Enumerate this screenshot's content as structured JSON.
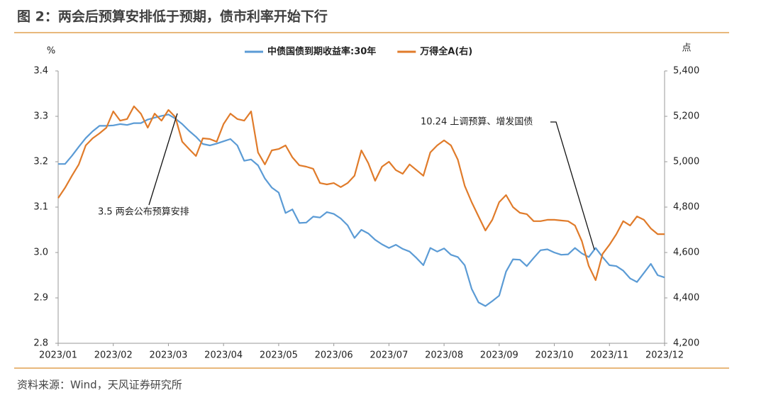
{
  "chart_data": {
    "type": "line",
    "title": "图 2：两会后预算安排低于预期，债市利率开始下行",
    "source": "资料来源：Wind，天风证券研究所",
    "y_label": "%",
    "y2_label": "点",
    "xticks": [
      "2023/01",
      "2023/02",
      "2023/03",
      "2023/04",
      "2023/05",
      "2023/06",
      "2023/07",
      "2023/08",
      "2023/09",
      "2023/10",
      "2023/11",
      "2023/12"
    ],
    "ylim": [
      2.8,
      3.4
    ],
    "yticks": [
      2.8,
      2.9,
      {
        "value": 3,
        "label": "3.0"
      },
      3.1,
      3.2,
      3.3,
      3.4
    ],
    "y2lim": [
      4200,
      5400
    ],
    "y2ticks": [
      {
        "value": 4200,
        "label": "4,200"
      },
      {
        "value": 4400,
        "label": "4,400"
      },
      {
        "value": 4600,
        "label": "4,600"
      },
      {
        "value": 4800,
        "label": "4,800"
      },
      {
        "value": 5000,
        "label": "5,000"
      },
      {
        "value": 5200,
        "label": "5,200"
      },
      {
        "value": 5400,
        "label": "5,400"
      }
    ],
    "legend": "top",
    "grid": false,
    "annotations": [
      {
        "text": "3.5 两会公布预算安排"
      },
      {
        "text": "10.24 上调预算、增发国债"
      }
    ],
    "series": [
      {
        "name": "中债国债到期收益率:30年",
        "color": "#5b9bd5",
        "values": [
          3.195,
          3.195,
          3.213,
          3.233,
          3.252,
          3.267,
          3.279,
          3.279,
          3.28,
          3.283,
          3.281,
          3.285,
          3.285,
          3.293,
          3.297,
          3.301,
          3.304,
          3.295,
          3.283,
          3.268,
          3.255,
          3.239,
          3.236,
          3.24,
          3.245,
          3.25,
          3.236,
          3.202,
          3.205,
          3.192,
          3.163,
          3.143,
          3.132,
          3.087,
          3.095,
          3.065,
          3.066,
          3.079,
          3.077,
          3.089,
          3.085,
          3.075,
          3.06,
          3.032,
          3.05,
          3.042,
          3.028,
          3.018,
          3.01,
          3.017,
          3.008,
          3.002,
          2.988,
          2.972,
          3.01,
          3.002,
          3.009,
          2.995,
          2.99,
          2.972,
          2.92,
          2.89,
          2.882,
          2.893,
          2.905,
          2.958,
          2.985,
          2.984,
          2.97,
          2.988,
          3.005,
          3.007,
          3.0,
          2.995,
          2.996,
          3.01,
          2.998,
          2.99,
          3.01,
          2.99,
          2.972,
          2.97,
          2.96,
          2.943,
          2.935,
          2.955,
          2.975,
          2.95,
          2.945
        ]
      },
      {
        "name": "万得全A(右)",
        "color": "#e07b2a",
        "axis": "y2",
        "values": [
          4840,
          4885,
          4938,
          4988,
          5072,
          5103,
          5125,
          5150,
          5222,
          5181,
          5188,
          5244,
          5212,
          5150,
          5212,
          5181,
          5228,
          5197,
          5088,
          5056,
          5025,
          5103,
          5100,
          5088,
          5166,
          5212,
          5188,
          5181,
          5222,
          5041,
          4988,
          5050,
          5056,
          5072,
          5019,
          4984,
          4978,
          4969,
          4906,
          4900,
          4906,
          4888,
          4906,
          4938,
          5050,
          4994,
          4916,
          4978,
          5000,
          4963,
          4947,
          4988,
          4963,
          4938,
          5041,
          5072,
          5094,
          5072,
          5009,
          4894,
          4822,
          4759,
          4697,
          4744,
          4822,
          4853,
          4800,
          4775,
          4769,
          4738,
          4738,
          4744,
          4744,
          4741,
          4738,
          4719,
          4650,
          4541,
          4478,
          4594,
          4634,
          4681,
          4738,
          4719,
          4759,
          4744,
          4706,
          4681,
          4681
        ]
      }
    ]
  }
}
